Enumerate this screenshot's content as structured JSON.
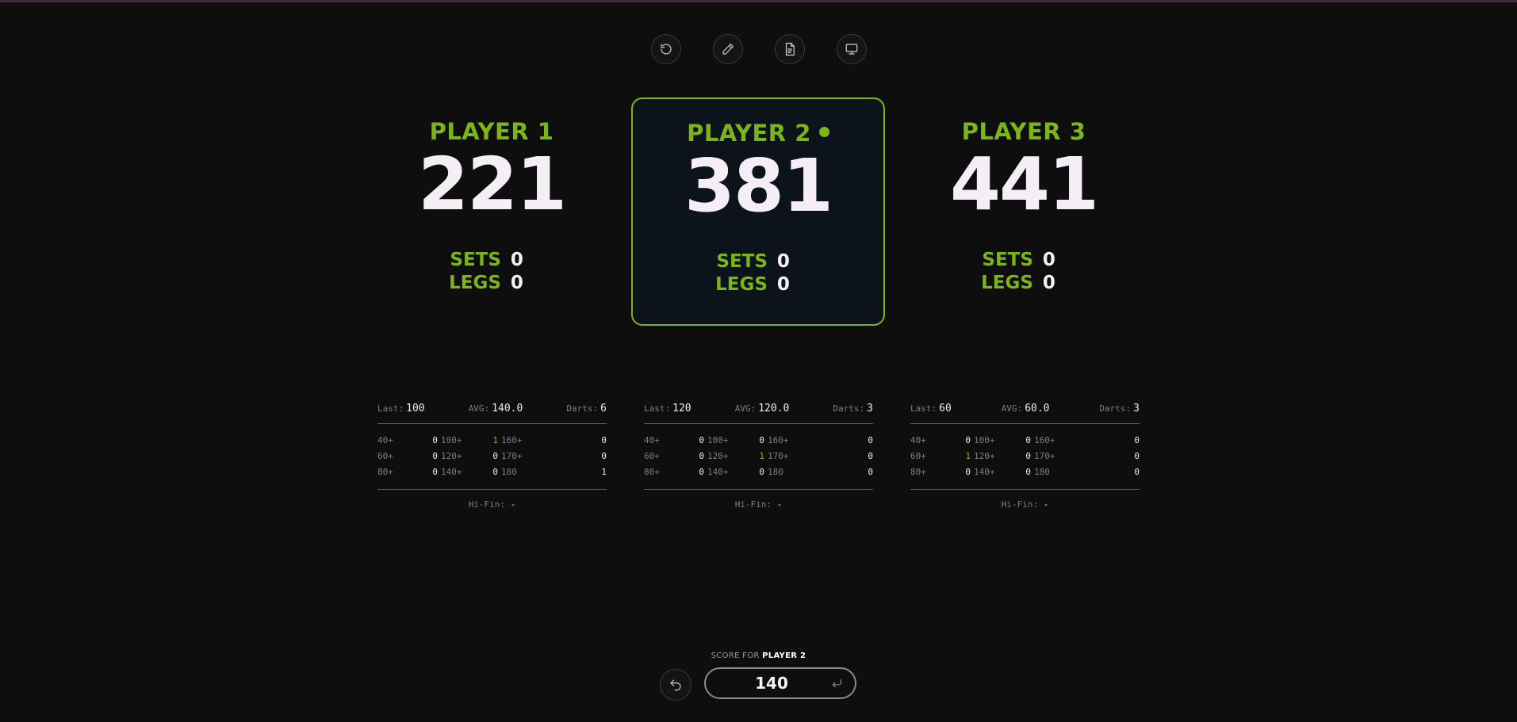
{
  "toolbar": {
    "buttons": [
      {
        "icon": "restart-icon"
      },
      {
        "icon": "pencil-icon"
      },
      {
        "icon": "document-icon"
      },
      {
        "icon": "monitor-icon"
      }
    ]
  },
  "players": [
    {
      "name": "PLAYER 1",
      "score": "221",
      "active": false,
      "sets_label": "SETS",
      "sets": "0",
      "legs_label": "LEGS",
      "legs": "0",
      "stats": {
        "last_label": "Last:",
        "last": "100",
        "avg_label": "AVG:",
        "avg": "140.0",
        "darts_label": "Darts:",
        "darts": "6",
        "rows": [
          [
            {
              "l": "40+",
              "v": "0"
            },
            {
              "l": "100+",
              "v": "1",
              "hl": true
            },
            {
              "l": "160+",
              "v": "0"
            }
          ],
          [
            {
              "l": "60+",
              "v": "0"
            },
            {
              "l": "120+",
              "v": "0"
            },
            {
              "l": "170+",
              "v": "0"
            }
          ],
          [
            {
              "l": "80+",
              "v": "0"
            },
            {
              "l": "140+",
              "v": "0"
            },
            {
              "l": "180",
              "v": "1"
            }
          ]
        ],
        "hifin_label": "Hi-Fin:",
        "hifin": "-"
      }
    },
    {
      "name": "PLAYER 2",
      "score": "381",
      "active": true,
      "sets_label": "SETS",
      "sets": "0",
      "legs_label": "LEGS",
      "legs": "0",
      "stats": {
        "last_label": "Last:",
        "last": "120",
        "avg_label": "AVG:",
        "avg": "120.0",
        "darts_label": "Darts:",
        "darts": "3",
        "rows": [
          [
            {
              "l": "40+",
              "v": "0"
            },
            {
              "l": "100+",
              "v": "0"
            },
            {
              "l": "160+",
              "v": "0"
            }
          ],
          [
            {
              "l": "60+",
              "v": "0"
            },
            {
              "l": "120+",
              "v": "1",
              "hl": true
            },
            {
              "l": "170+",
              "v": "0"
            }
          ],
          [
            {
              "l": "80+",
              "v": "0"
            },
            {
              "l": "140+",
              "v": "0"
            },
            {
              "l": "180",
              "v": "0"
            }
          ]
        ],
        "hifin_label": "Hi-Fin:",
        "hifin": "-"
      }
    },
    {
      "name": "PLAYER 3",
      "score": "441",
      "active": false,
      "sets_label": "SETS",
      "sets": "0",
      "legs_label": "LEGS",
      "legs": "0",
      "stats": {
        "last_label": "Last:",
        "last": "60",
        "avg_label": "AVG:",
        "avg": "60.0",
        "darts_label": "Darts:",
        "darts": "3",
        "rows": [
          [
            {
              "l": "40+",
              "v": "0"
            },
            {
              "l": "100+",
              "v": "0"
            },
            {
              "l": "160+",
              "v": "0"
            }
          ],
          [
            {
              "l": "60+",
              "v": "1",
              "hl": true
            },
            {
              "l": "120+",
              "v": "0"
            },
            {
              "l": "170+",
              "v": "0"
            }
          ],
          [
            {
              "l": "80+",
              "v": "0"
            },
            {
              "l": "140+",
              "v": "0"
            },
            {
              "l": "180",
              "v": "0"
            }
          ]
        ],
        "hifin_label": "Hi-Fin:",
        "hifin": "-"
      }
    }
  ],
  "input": {
    "label_prefix": "SCORE FOR",
    "label_player": "PLAYER 2",
    "value": "140",
    "undo_icon": "undo-icon",
    "enter_icon": "enter-icon"
  },
  "colors": {
    "accent": "#7cb518",
    "background": "#0e0e0e",
    "active_card_bg": "#0d131b",
    "score_text": "#f5eef7"
  }
}
